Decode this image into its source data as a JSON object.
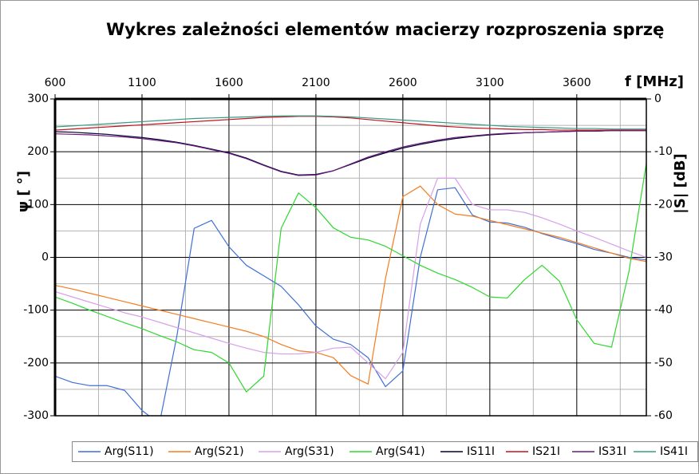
{
  "chart_data": {
    "type": "line",
    "title": "Wykres zależności elementów macierzy rozproszenia sprzę",
    "x_label": "f [MHz]",
    "y_label": "ψ [ °]",
    "y2_label": "|S| [dB]",
    "x": [
      600,
      700,
      800,
      900,
      1000,
      1100,
      1200,
      1300,
      1400,
      1500,
      1600,
      1700,
      1800,
      1900,
      2000,
      2100,
      2200,
      2300,
      2400,
      2500,
      2600,
      2700,
      2800,
      2900,
      3000,
      3100,
      3200,
      3300,
      3400,
      3500,
      3600,
      3700,
      3800,
      3900,
      4000
    ],
    "xlim": [
      600,
      4000
    ],
    "xticks": [
      600,
      1100,
      1600,
      2100,
      2600,
      3100,
      3600
    ],
    "x_minor_ticks": [
      850,
      1350,
      1850,
      2350,
      2850,
      3350,
      3850
    ],
    "ylim": [
      -300,
      300
    ],
    "yticks": [
      300,
      200,
      100,
      0,
      -100,
      -200,
      -300
    ],
    "y_minor_ticks": [
      250,
      150,
      50,
      -50,
      -150,
      -250
    ],
    "y2lim": [
      -60,
      0
    ],
    "y2ticks": [
      0,
      -10,
      -20,
      -30,
      -40,
      -50,
      -60
    ],
    "grid": true,
    "x_axis_position": "top",
    "legend": "bottom",
    "series": [
      {
        "name": "Arg(S11)",
        "color": "#3f6fd6",
        "values": [
          -225,
          -237,
          -243,
          -243,
          -252,
          -290,
          -315,
          -150,
          55,
          70,
          20,
          -15,
          -35,
          -55,
          -90,
          -130,
          -155,
          -165,
          -190,
          -245,
          -215,
          0,
          128,
          132,
          80,
          67,
          65,
          57,
          45,
          35,
          26,
          15,
          8,
          0,
          -5
        ]
      },
      {
        "name": "Arg(S21)",
        "color": "#f57c1f",
        "values": [
          -53,
          -60,
          -68,
          -76,
          -84,
          -92,
          -100,
          -108,
          -116,
          -124,
          -132,
          -140,
          -150,
          -165,
          -177,
          -180,
          -190,
          -224,
          -240,
          -40,
          115,
          135,
          100,
          82,
          78,
          70,
          62,
          54,
          46,
          38,
          28,
          18,
          8,
          -2,
          -8
        ]
      },
      {
        "name": "Arg(S31)",
        "color": "#d7a0ea",
        "values": [
          -65,
          -75,
          -85,
          -95,
          -105,
          -113,
          -123,
          -133,
          -143,
          -153,
          -163,
          -172,
          -180,
          -183,
          -183,
          -180,
          -172,
          -170,
          -200,
          -230,
          -180,
          63,
          150,
          150,
          100,
          90,
          90,
          85,
          75,
          63,
          50,
          38,
          25,
          12,
          0
        ]
      },
      {
        "name": "Arg(S41)",
        "color": "#2ed82e",
        "values": [
          -75,
          -87,
          -100,
          -112,
          -124,
          -135,
          -148,
          -160,
          -175,
          -180,
          -200,
          -255,
          -225,
          55,
          122,
          94,
          56,
          38,
          33,
          21,
          3,
          -15,
          -30,
          -42,
          -57,
          -75,
          -77,
          -42,
          -15,
          -45,
          -118,
          -163,
          -170,
          -27,
          178
        ]
      },
      {
        "name": "IS11I",
        "color": "#000033",
        "axis": "y2",
        "values": [
          -6.2,
          -6.3,
          -6.5,
          -6.7,
          -7.0,
          -7.3,
          -7.7,
          -8.2,
          -8.8,
          -9.5,
          -10.2,
          -11.2,
          -12.5,
          -13.7,
          -14.4,
          -14.3,
          -13.6,
          -12.4,
          -11.2,
          -10.2,
          -9.3,
          -8.6,
          -8.0,
          -7.5,
          -7.1,
          -6.8,
          -6.6,
          -6.4,
          -6.3,
          -6.2,
          -6.1,
          -6.1,
          -6.0,
          -6.0,
          -6.0
        ]
      },
      {
        "name": "IS21I",
        "color": "#c0141c",
        "axis": "y2",
        "values": [
          -5.9,
          -5.7,
          -5.5,
          -5.3,
          -5.1,
          -4.9,
          -4.7,
          -4.5,
          -4.3,
          -4.1,
          -3.9,
          -3.7,
          -3.5,
          -3.4,
          -3.3,
          -3.3,
          -3.4,
          -3.6,
          -3.9,
          -4.2,
          -4.5,
          -4.8,
          -5.1,
          -5.3,
          -5.5,
          -5.6,
          -5.7,
          -5.8,
          -5.8,
          -5.9,
          -5.9,
          -5.9,
          -5.9,
          -5.9,
          -5.9
        ]
      },
      {
        "name": "IS31I",
        "color": "#6a1a7a",
        "axis": "y2",
        "values": [
          -6.6,
          -6.7,
          -6.8,
          -7.0,
          -7.2,
          -7.5,
          -7.9,
          -8.3,
          -8.9,
          -9.6,
          -10.3,
          -11.3,
          -12.6,
          -13.8,
          -14.5,
          -14.4,
          -13.6,
          -12.3,
          -11.0,
          -10.0,
          -9.1,
          -8.4,
          -7.8,
          -7.3,
          -7.0,
          -6.7,
          -6.5,
          -6.4,
          -6.3,
          -6.2,
          -6.1,
          -6.1,
          -6.0,
          -6.0,
          -6.0
        ]
      },
      {
        "name": "IS41I",
        "color": "#3a9a84",
        "axis": "y2",
        "values": [
          -5.3,
          -5.1,
          -4.9,
          -4.7,
          -4.5,
          -4.3,
          -4.1,
          -3.9,
          -3.7,
          -3.6,
          -3.5,
          -3.4,
          -3.3,
          -3.2,
          -3.2,
          -3.2,
          -3.3,
          -3.4,
          -3.6,
          -3.8,
          -4.0,
          -4.2,
          -4.4,
          -4.6,
          -4.8,
          -5.0,
          -5.2,
          -5.3,
          -5.4,
          -5.5,
          -5.6,
          -5.6,
          -5.7,
          -5.7,
          -5.7
        ]
      }
    ]
  }
}
